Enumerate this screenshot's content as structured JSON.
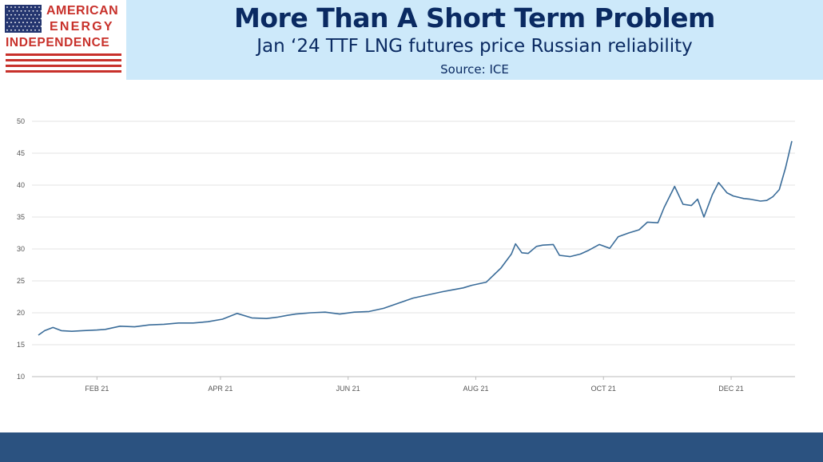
{
  "logo": {
    "line1": "AMERICAN",
    "line2": "ENERGY",
    "line3": "INDEPENDENCE",
    "colors": {
      "red": "#c8312b",
      "blue": "#24356f"
    }
  },
  "header": {
    "title": "More Than A Short Term Problem",
    "subtitle": "Jan ‘24 TTF LNG futures price Russian reliability",
    "source": "Source: ICE",
    "background": "#cde9fa",
    "text_color": "#0a2a62"
  },
  "footer": {
    "band_color": "#2b5280"
  },
  "chart_data": {
    "type": "line",
    "title": "",
    "xlabel": "",
    "ylabel": "",
    "ylim": [
      10,
      50
    ],
    "yticks": [
      10,
      15,
      20,
      25,
      30,
      35,
      40,
      45,
      50
    ],
    "xlim": [
      "2021-01-04",
      "2021-12-30"
    ],
    "xticks": [
      {
        "label": "FEB 21",
        "date": "2021-02-01"
      },
      {
        "label": "APR 21",
        "date": "2021-04-01"
      },
      {
        "label": "JUN 21",
        "date": "2021-06-01"
      },
      {
        "label": "AUG 21",
        "date": "2021-08-01"
      },
      {
        "label": "OCT 21",
        "date": "2021-10-01"
      },
      {
        "label": "DEC 21",
        "date": "2021-12-01"
      }
    ],
    "grid": true,
    "line_color": "#3a6c99",
    "series": [
      {
        "x": [
          "2021-01-04",
          "2021-01-07",
          "2021-01-11",
          "2021-01-15",
          "2021-01-20",
          "2021-01-25",
          "2021-02-01",
          "2021-02-05",
          "2021-02-12",
          "2021-02-19",
          "2021-02-26",
          "2021-03-05",
          "2021-03-12",
          "2021-03-19",
          "2021-03-26",
          "2021-04-02",
          "2021-04-09",
          "2021-04-16",
          "2021-04-23",
          "2021-04-28",
          "2021-05-03",
          "2021-05-07",
          "2021-05-14",
          "2021-05-21",
          "2021-05-28",
          "2021-06-04",
          "2021-06-11",
          "2021-06-18",
          "2021-06-25",
          "2021-07-02",
          "2021-07-09",
          "2021-07-16",
          "2021-07-21",
          "2021-07-26",
          "2021-07-30",
          "2021-08-06",
          "2021-08-13",
          "2021-08-18",
          "2021-08-20",
          "2021-08-23",
          "2021-08-26",
          "2021-08-30",
          "2021-09-02",
          "2021-09-07",
          "2021-09-10",
          "2021-09-15",
          "2021-09-20",
          "2021-09-24",
          "2021-09-29",
          "2021-10-04",
          "2021-10-08",
          "2021-10-13",
          "2021-10-18",
          "2021-10-22",
          "2021-10-27",
          "2021-10-30",
          "2021-11-04",
          "2021-11-08",
          "2021-11-12",
          "2021-11-15",
          "2021-11-18",
          "2021-11-22",
          "2021-11-25",
          "2021-11-29",
          "2021-12-02",
          "2021-12-07",
          "2021-12-10",
          "2021-12-15",
          "2021-12-18",
          "2021-12-21",
          "2021-12-24",
          "2021-12-27",
          "2021-12-30"
        ],
        "y": [
          16.5,
          17.2,
          17.7,
          17.2,
          17.1,
          17.2,
          17.3,
          17.4,
          17.9,
          17.8,
          18.1,
          18.2,
          18.4,
          18.4,
          18.6,
          19.0,
          19.9,
          19.2,
          19.1,
          19.3,
          19.6,
          19.8,
          20.0,
          20.1,
          19.8,
          20.1,
          20.2,
          20.7,
          21.5,
          22.3,
          22.8,
          23.3,
          23.6,
          23.9,
          24.3,
          24.8,
          27.0,
          29.2,
          30.8,
          29.4,
          29.3,
          30.4,
          30.6,
          30.7,
          29.0,
          28.8,
          29.2,
          29.8,
          30.7,
          30.1,
          31.9,
          32.5,
          33.0,
          34.2,
          34.1,
          36.5,
          39.8,
          37.0,
          36.8,
          37.8,
          35.0,
          38.5,
          40.4,
          38.8,
          38.3,
          37.9,
          37.8,
          37.5,
          37.6,
          38.2,
          39.3,
          42.7,
          46.9
        ]
      }
    ]
  }
}
